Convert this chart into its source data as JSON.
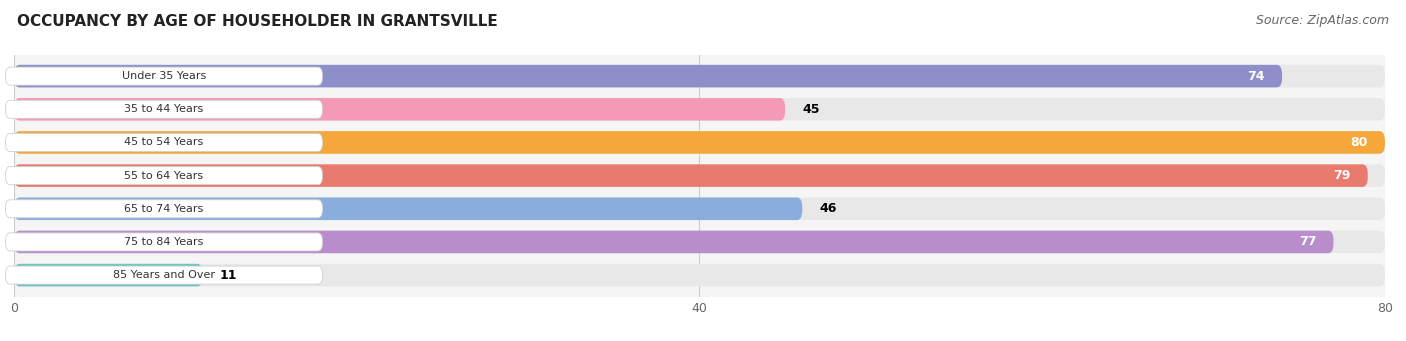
{
  "title": "OCCUPANCY BY AGE OF HOUSEHOLDER IN GRANTSVILLE",
  "source": "Source: ZipAtlas.com",
  "categories": [
    "Under 35 Years",
    "35 to 44 Years",
    "45 to 54 Years",
    "55 to 64 Years",
    "65 to 74 Years",
    "75 to 84 Years",
    "85 Years and Over"
  ],
  "values": [
    74,
    45,
    80,
    79,
    46,
    77,
    11
  ],
  "bar_colors": [
    "#8e8fca",
    "#f49ab5",
    "#f5a73b",
    "#e87b6e",
    "#89aedd",
    "#b98ccc",
    "#76c4c0"
  ],
  "bar_bg_color": "#e8e8e8",
  "label_colors": [
    "white",
    "black",
    "white",
    "white",
    "black",
    "white",
    "black"
  ],
  "xlim": [
    0,
    80
  ],
  "x_ticks": [
    0,
    40,
    80
  ],
  "title_fontsize": 11,
  "source_fontsize": 9,
  "background_color": "#ffffff",
  "plot_bg_color": "#f5f5f5"
}
